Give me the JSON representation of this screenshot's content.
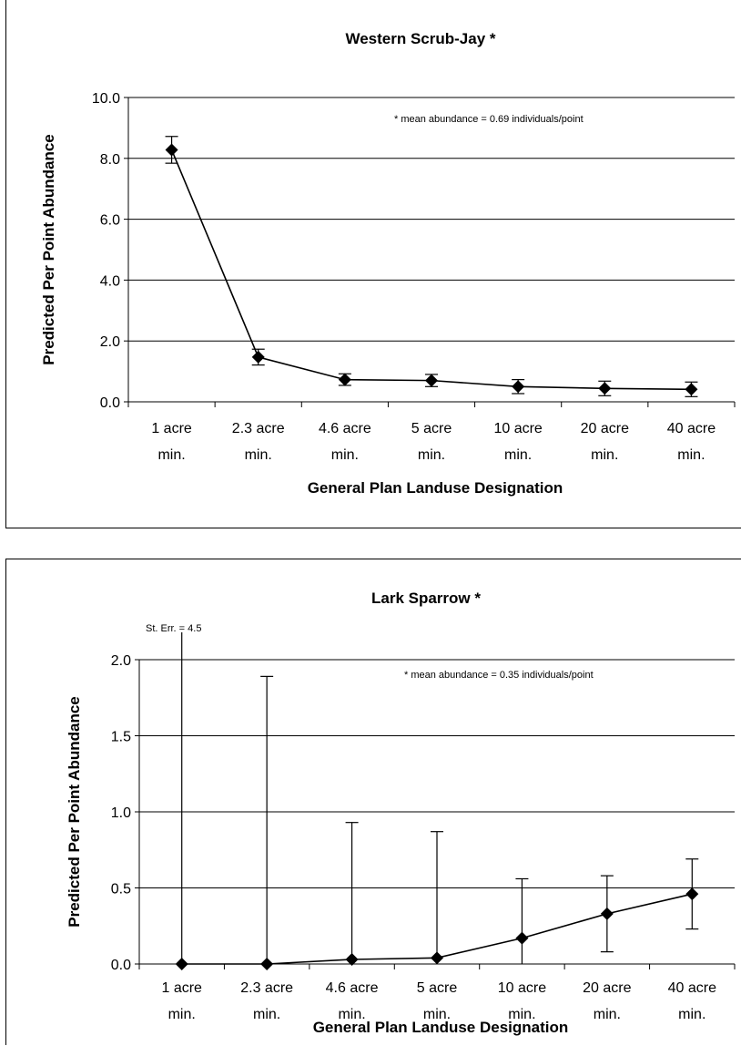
{
  "chart_data": [
    {
      "type": "line",
      "title": "Western Scrub-Jay *",
      "xlabel": "General Plan Landuse Designation",
      "ylabel": "Predicted Per Point Abundance",
      "note": "* mean abundance = 0.69 individuals/point",
      "ylim": [
        0,
        10
      ],
      "yticks": [
        "0.0",
        "2.0",
        "4.0",
        "6.0",
        "8.0",
        "10.0"
      ],
      "categories": [
        [
          "1 acre",
          "min."
        ],
        [
          "2.3 acre",
          "min."
        ],
        [
          "4.6 acre",
          "min."
        ],
        [
          "5 acre",
          "min."
        ],
        [
          "10 acre",
          "min."
        ],
        [
          "20 acre",
          "min."
        ],
        [
          "40 acre",
          "min."
        ]
      ],
      "values": [
        8.28,
        1.47,
        0.73,
        0.7,
        0.5,
        0.44,
        0.41
      ],
      "err_upper": [
        8.72,
        1.73,
        0.92,
        0.9,
        0.73,
        0.68,
        0.65
      ],
      "err_lower": [
        7.84,
        1.21,
        0.54,
        0.5,
        0.27,
        0.2,
        0.17
      ],
      "grid": true
    },
    {
      "type": "line",
      "title": "Lark Sparrow *",
      "xlabel": "General Plan Landuse Designation",
      "ylabel": "Predicted Per Point Abundance",
      "note": "* mean abundance = 0.35 individuals/point",
      "annotation": "St. Err. = 4.5",
      "ylim": [
        0,
        2
      ],
      "yticks": [
        "0.0",
        "0.5",
        "1.0",
        "1.5",
        "2.0"
      ],
      "categories": [
        [
          "1 acre",
          "min."
        ],
        [
          "2.3 acre",
          "min."
        ],
        [
          "4.6 acre",
          "min."
        ],
        [
          "5 acre",
          "min."
        ],
        [
          "10 acre",
          "min."
        ],
        [
          "20 acre",
          "min."
        ],
        [
          "40 acre",
          "min."
        ]
      ],
      "values": [
        0.0,
        0.0,
        0.03,
        0.04,
        0.17,
        0.33,
        0.46
      ],
      "err_upper": [
        4.5,
        1.89,
        0.93,
        0.87,
        0.56,
        0.58,
        0.69
      ],
      "err_lower": [
        0.0,
        0.0,
        0.0,
        0.0,
        0.0,
        0.08,
        0.23
      ],
      "grid": true
    }
  ]
}
